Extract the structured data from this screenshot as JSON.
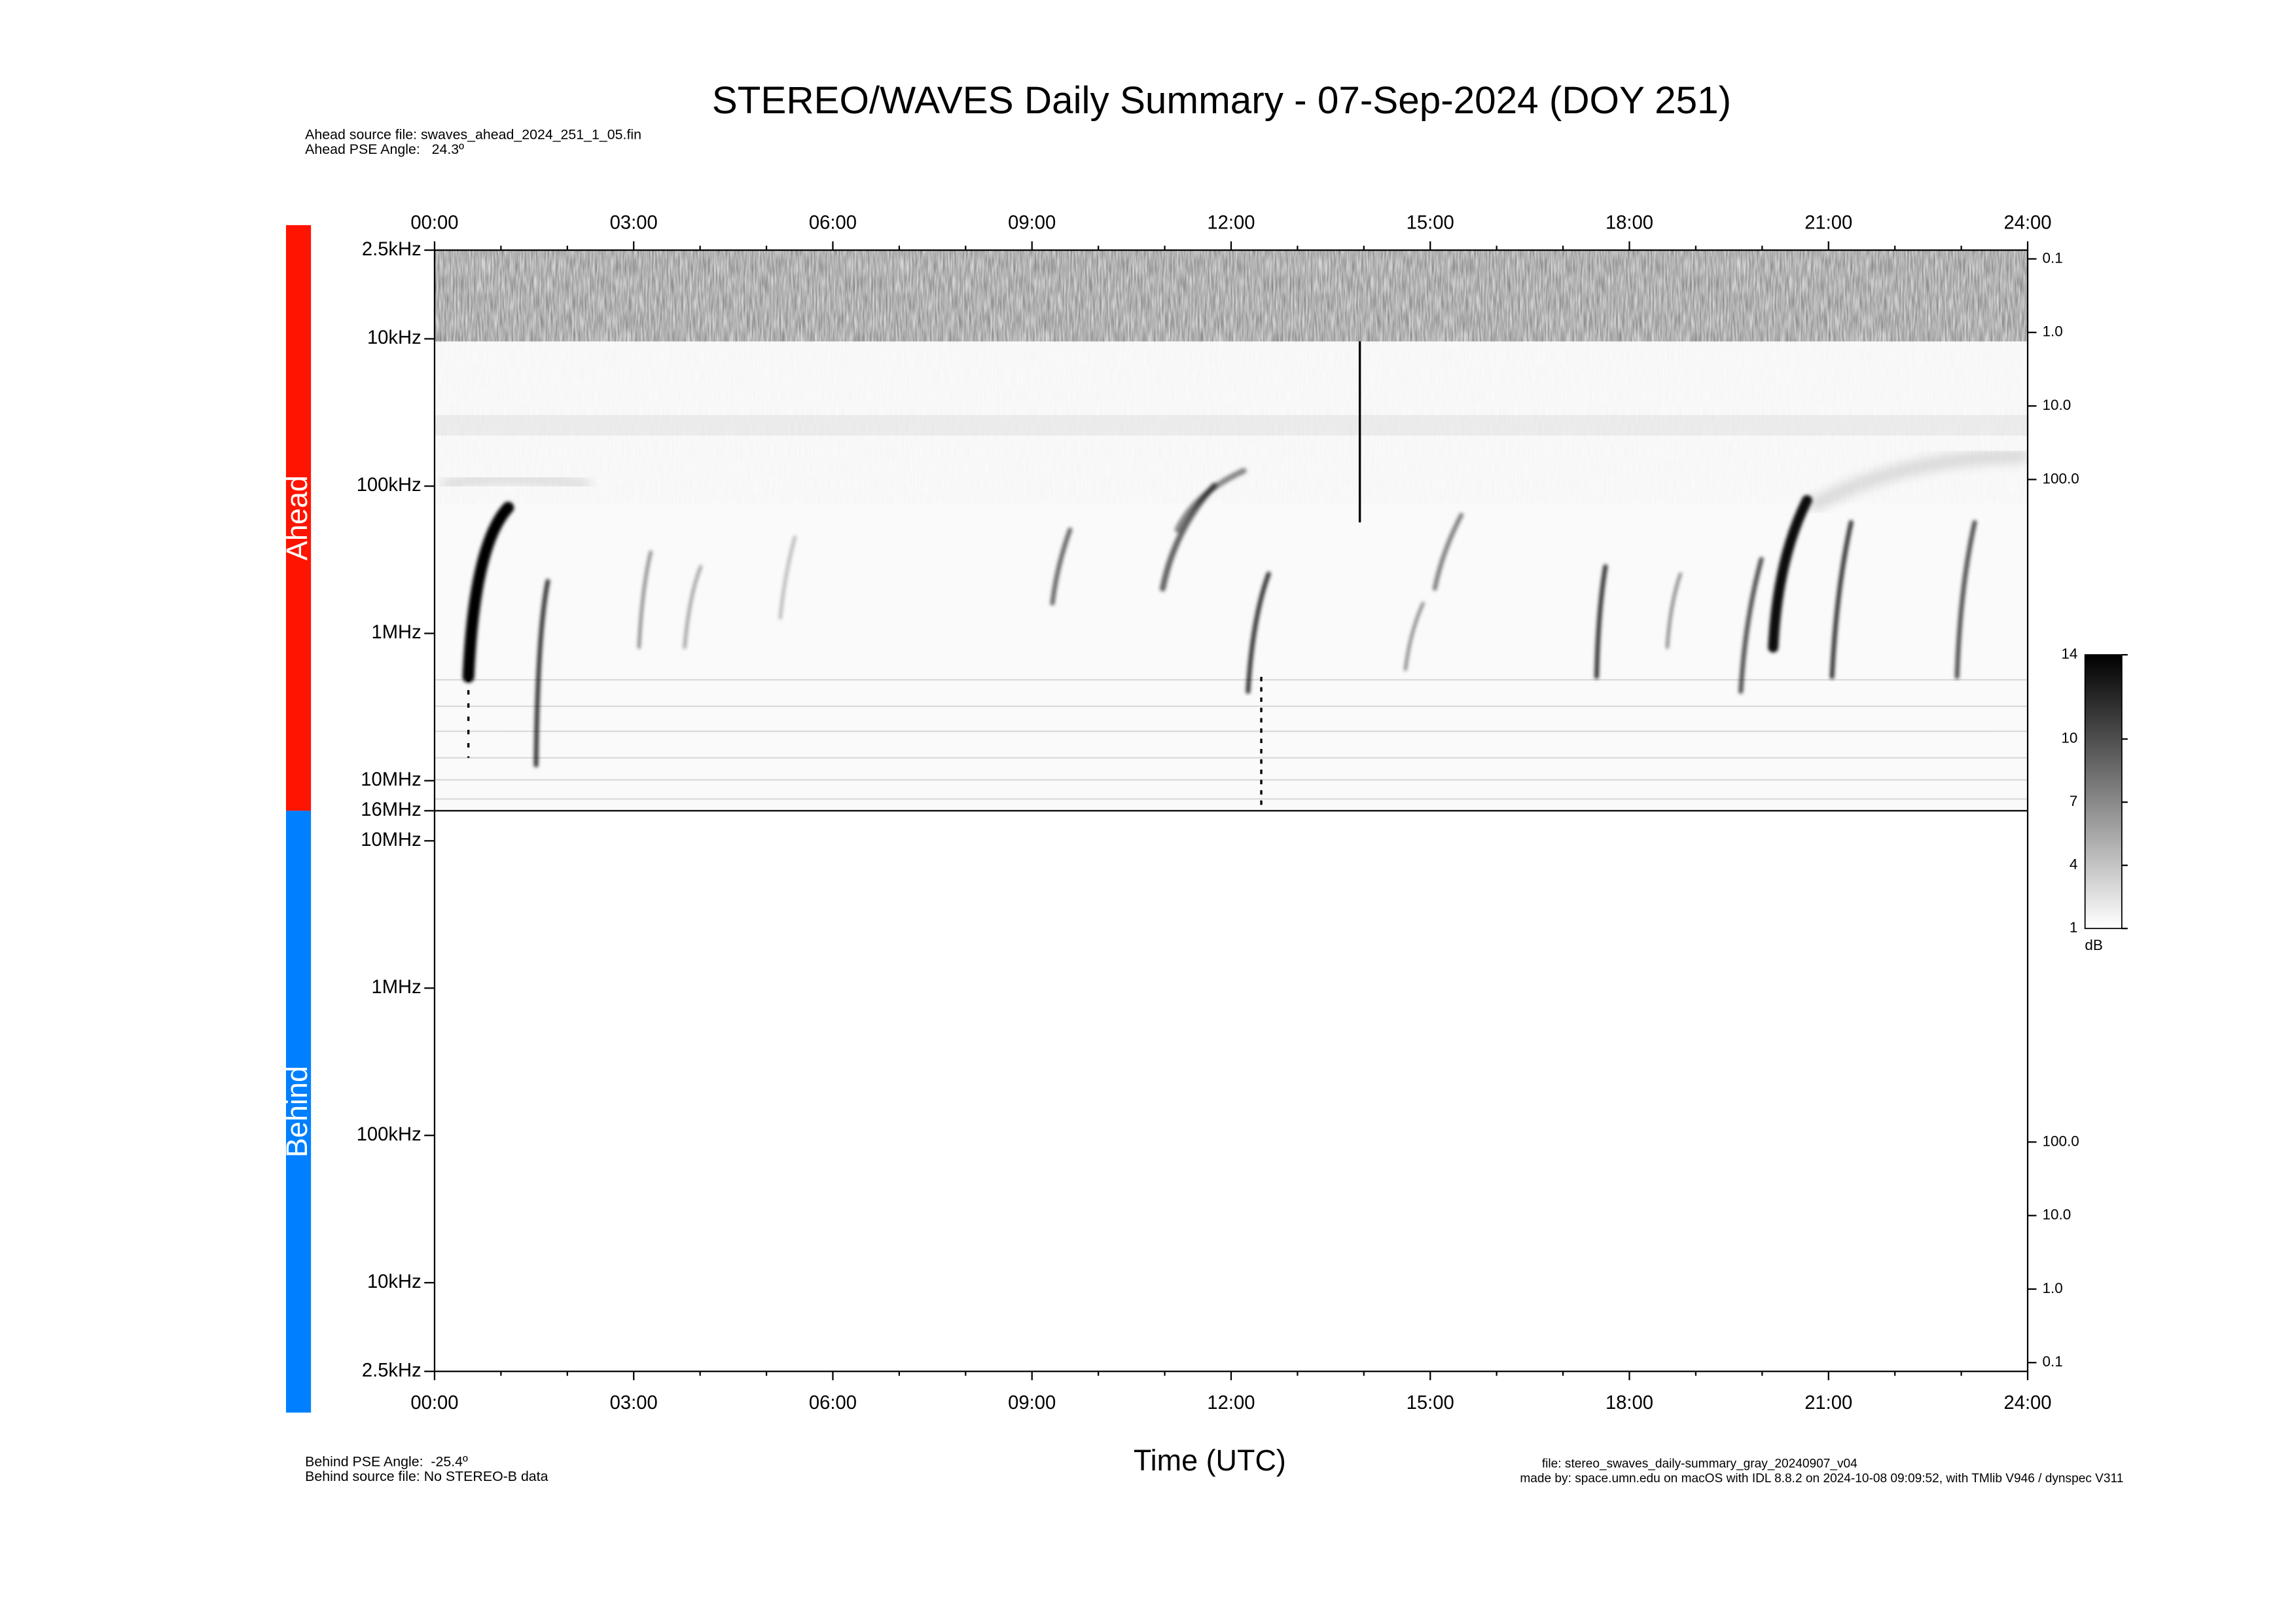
{
  "title": "STEREO/WAVES Daily Summary - 07-Sep-2024 (DOY 251)",
  "ahead_source_file": "Ahead source file: swaves_ahead_2024_251_1_05.fin",
  "ahead_pse_angle": "Ahead PSE Angle:   24.3º",
  "behind_pse_angle": "Behind PSE Angle:  -25.4º",
  "behind_source_file": "Behind source file: No STEREO-B data",
  "file_name": "file: stereo_swaves_daily-summary_gray_20240907_v04",
  "made_by": "made by: space.umn.edu on macOS with IDL 8.8.2 on 2024-10-08 09:09:52, with TMlib V946 / dynspec V311",
  "chart_data": {
    "type": "spectrogram",
    "x_label": "Time (UTC)",
    "xlim": [
      0,
      24
    ],
    "xticks": [
      {
        "value": 0,
        "label": "00:00"
      },
      {
        "value": 3,
        "label": "03:00"
      },
      {
        "value": 6,
        "label": "06:00"
      },
      {
        "value": 9,
        "label": "09:00"
      },
      {
        "value": 12,
        "label": "12:00"
      },
      {
        "value": 15,
        "label": "15:00"
      },
      {
        "value": 18,
        "label": "18:00"
      },
      {
        "value": 21,
        "label": "21:00"
      },
      {
        "value": 24,
        "label": "24:00"
      }
    ],
    "log_scale": true,
    "panels": [
      {
        "name": "Ahead",
        "color": "#ff1400",
        "ylim": [
          2500,
          16000000
        ],
        "yticks": [
          {
            "value": 2500,
            "label": "2.5kHz"
          },
          {
            "value": 10000,
            "label": "10kHz"
          },
          {
            "value": 100000,
            "label": "100kHz"
          },
          {
            "value": 1000000,
            "label": "1MHz"
          },
          {
            "value": 10000000,
            "label": "10MHz"
          },
          {
            "value": 16000000,
            "label": "16MHz"
          }
        ],
        "y2lim": [
          0.076,
          3200000
        ],
        "y2ticks": [
          {
            "value": 0.1,
            "label": "0.1"
          },
          {
            "value": 1,
            "label": "1.0"
          },
          {
            "value": 10,
            "label": "10.0"
          },
          {
            "value": 100,
            "label": "100.0"
          }
        ]
      },
      {
        "name": "Behind",
        "color": "#0080ff",
        "ylim": [
          16000000,
          2500
        ],
        "yticks": [
          {
            "value": 10000000,
            "label": "10MHz"
          },
          {
            "value": 1000000,
            "label": "1MHz"
          },
          {
            "value": 100000,
            "label": "100kHz"
          },
          {
            "value": 10000,
            "label": "10kHz"
          },
          {
            "value": 2500,
            "label": "2.5kHz"
          }
        ],
        "y2lim": [
          3200000,
          0.076
        ],
        "y2ticks": [
          {
            "value": 100,
            "label": "100.0"
          },
          {
            "value": 10,
            "label": "10.0"
          },
          {
            "value": 1,
            "label": "1.0"
          },
          {
            "value": 0.1,
            "label": "0.1"
          }
        ]
      }
    ],
    "colorbar": {
      "label": "dB",
      "ylim": [
        1,
        14
      ],
      "yticks": [
        14,
        10,
        7,
        4,
        1
      ]
    }
  }
}
